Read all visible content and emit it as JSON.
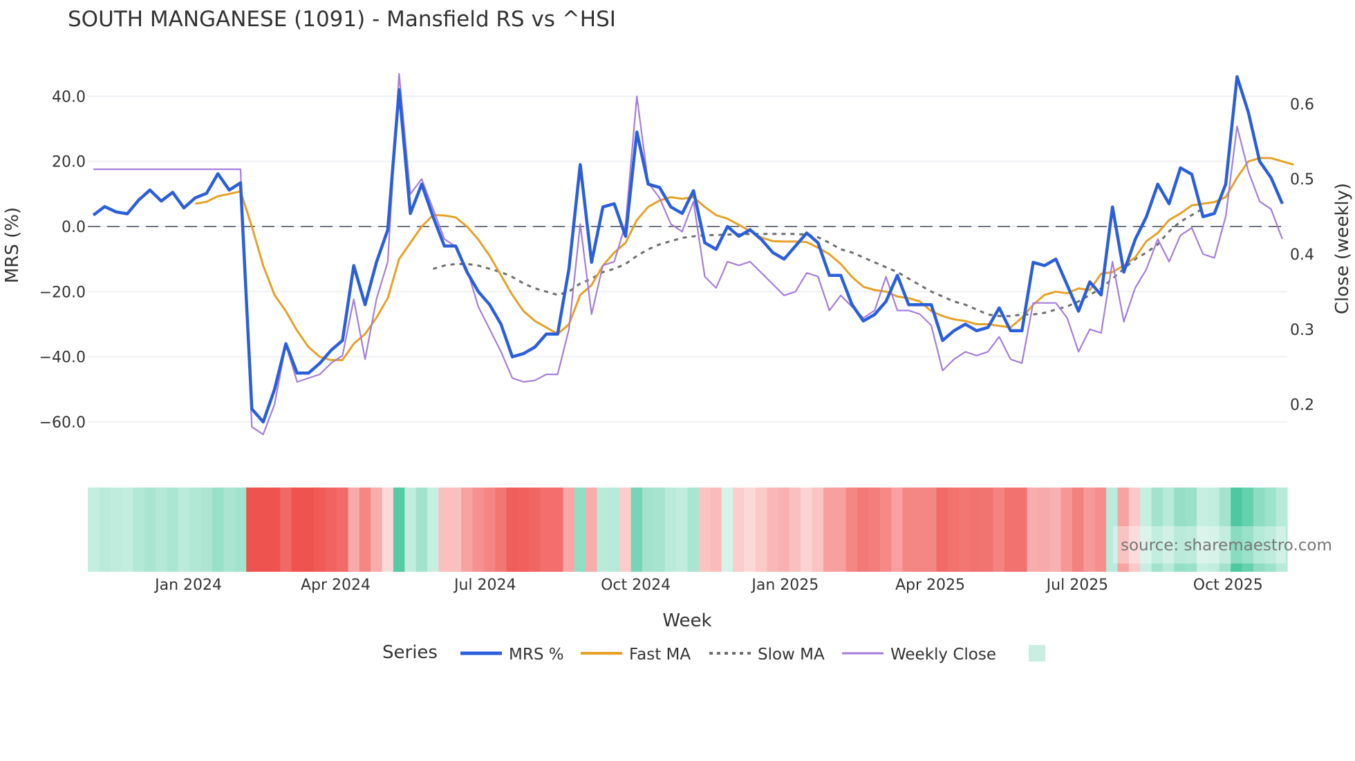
{
  "title": "SOUTH MANGANESE (1091) - Mansfield RS vs ^HSI",
  "source": "source: sharemaestro.com",
  "colors": {
    "mrs": "#2b5fd9",
    "fast_ma": "#e6a126",
    "slow_ma": "#6e6e6e",
    "weekly_close": "#a57ddb",
    "zero_line": "#6e7580",
    "grid": "#eef0f4",
    "heat_pos": "#4cc9a0",
    "heat_neg": "#ef5350"
  },
  "legend": {
    "title": "Series",
    "items": [
      {
        "label": "MRS %",
        "style": "solid-thick",
        "color": "#2b5fd9"
      },
      {
        "label": "Fast MA",
        "style": "solid",
        "color": "#e6a126"
      },
      {
        "label": "Slow MA",
        "style": "dotted",
        "color": "#6e6e6e"
      },
      {
        "label": "Weekly Close",
        "style": "solid-thin",
        "color": "#a57ddb"
      },
      {
        "label": "",
        "style": "swatch",
        "color": "#c9efe2"
      }
    ]
  },
  "chart_data": {
    "type": "line",
    "title": "SOUTH MANGANESE (1091) - Mansfield RS vs ^HSI",
    "xlabel": "Week",
    "ylabel": "MRS (%)",
    "y2label": "Close (weekly)",
    "ylim": [
      -67,
      53
    ],
    "y2lim": [
      0.15,
      0.68
    ],
    "yticks": [
      "40.0",
      "20.0",
      "0.0",
      "−20.0",
      "−40.0",
      "−60.0"
    ],
    "ytick_values": [
      40,
      20,
      0,
      -20,
      -40,
      -60
    ],
    "y2ticks": [
      "0.6",
      "0.5",
      "0.4",
      "0.3",
      "0.2"
    ],
    "y2tick_values": [
      0.6,
      0.5,
      0.4,
      0.3,
      0.2
    ],
    "xticks": [
      "Jan 2024",
      "Apr 2024",
      "Jul 2024",
      "Oct 2024",
      "Jan 2025",
      "Apr 2025",
      "Jul 2025",
      "Oct 2025"
    ],
    "xtick_week_index": [
      8.4,
      21.4,
      34.6,
      47.9,
      61.1,
      73.9,
      86.9,
      100.2
    ],
    "x_start": "2023-11-06",
    "x_step": "1 week",
    "n_points": 106,
    "grid": true,
    "zero_line": "dashed",
    "legend_position": "bottom",
    "series": [
      {
        "name": "MRS %",
        "axis": "left",
        "values": [
          3.5,
          6.1,
          4.5,
          3.9,
          8.1,
          11.2,
          7.8,
          10.5,
          5.7,
          8.8,
          10.2,
          16.2,
          11.2,
          13.4,
          -56,
          -60,
          -50,
          -36,
          -45,
          -45,
          -42,
          -38,
          -35,
          -12,
          -24,
          -11,
          -1,
          42,
          4,
          13,
          3,
          -6,
          -6,
          -14,
          -20,
          -24,
          -30,
          -40,
          -39,
          -37,
          -33,
          -33,
          -13,
          19,
          -11,
          6,
          7,
          -3,
          29,
          13,
          12,
          6,
          4,
          11,
          -5,
          -7,
          0,
          -3,
          -1,
          -4,
          -8,
          -10,
          -6,
          -2,
          -5,
          -15,
          -15,
          -24,
          -29,
          -27,
          -23,
          -15,
          -24,
          -24,
          -24,
          -35,
          -32,
          -30,
          -32,
          -31,
          -25,
          -32,
          -32,
          -11,
          -12,
          -10,
          -18,
          -26,
          -17,
          -21,
          6,
          -14,
          -4,
          3,
          13,
          7,
          18,
          16,
          3,
          4,
          13,
          46,
          35,
          20,
          15,
          7
        ]
      },
      {
        "name": "Fast MA",
        "axis": "left",
        "start_index": 9,
        "values": [
          7.0,
          7.6,
          9.3,
          10.0,
          10.8,
          0,
          -12,
          -21,
          -26,
          -32,
          -37,
          -40,
          -41,
          -41,
          -36,
          -33,
          -28,
          -22,
          -10,
          -5,
          0,
          3.5,
          3.4,
          2.8,
          0,
          -4,
          -9,
          -15,
          -21,
          -26,
          -29,
          -31,
          -33,
          -30,
          -21,
          -18,
          -12,
          -8,
          -5,
          2,
          6,
          8,
          9,
          8.5,
          9,
          6,
          3.5,
          2.4,
          0.5,
          -1.4,
          -3.4,
          -4.5,
          -4.6,
          -4.6,
          -4.8,
          -6.5,
          -8.5,
          -11.5,
          -15.5,
          -18.5,
          -19.5,
          -20,
          -21.5,
          -22,
          -23,
          -26,
          -27.5,
          -28.5,
          -29,
          -30,
          -30,
          -30.5,
          -31,
          -28,
          -24,
          -21,
          -20,
          -20.5,
          -19,
          -19.5,
          -14.5,
          -14,
          -12,
          -9.5,
          -4.5,
          -2,
          2,
          4,
          6.5,
          7,
          7.5,
          9,
          15,
          20,
          21,
          21,
          20,
          19
        ]
      },
      {
        "name": "Slow MA",
        "axis": "left",
        "start_index": 30,
        "values": [
          -13,
          -12,
          -11.5,
          -11.5,
          -12,
          -13,
          -14,
          -15.5,
          -17.5,
          -19,
          -20,
          -21,
          -20,
          -17.5,
          -16,
          -14,
          -13,
          -11.5,
          -9,
          -7,
          -5.5,
          -4.5,
          -3.5,
          -3,
          -2.7,
          -2.6,
          -2.5,
          -2.4,
          -2.3,
          -2.3,
          -2.3,
          -2.3,
          -2.3,
          -2.5,
          -3.3,
          -5,
          -7,
          -8,
          -9.5,
          -11,
          -12.5,
          -14,
          -16,
          -18,
          -20,
          -21.5,
          -23,
          -24,
          -25.5,
          -27,
          -27.5,
          -27.5,
          -27,
          -27,
          -26.5,
          -25.5,
          -24.5,
          -23,
          -21,
          -19,
          -16,
          -13,
          -10,
          -8,
          -5.5,
          -1.5,
          1.5,
          3.5,
          5.5
        ]
      },
      {
        "name": "Weekly Close",
        "axis": "right",
        "values": [
          0.513,
          0.513,
          0.513,
          0.513,
          0.513,
          0.513,
          0.513,
          0.513,
          0.513,
          0.513,
          0.513,
          0.513,
          0.513,
          0.513,
          0.17,
          0.16,
          0.2,
          0.28,
          0.23,
          0.235,
          0.24,
          0.255,
          0.265,
          0.34,
          0.26,
          0.34,
          0.39,
          0.64,
          0.48,
          0.5,
          0.46,
          0.42,
          0.41,
          0.38,
          0.33,
          0.3,
          0.27,
          0.235,
          0.23,
          0.232,
          0.24,
          0.24,
          0.3,
          0.44,
          0.32,
          0.385,
          0.39,
          0.44,
          0.61,
          0.495,
          0.475,
          0.44,
          0.43,
          0.47,
          0.37,
          0.355,
          0.39,
          0.385,
          0.39,
          0.375,
          0.36,
          0.345,
          0.35,
          0.375,
          0.37,
          0.325,
          0.345,
          0.33,
          0.315,
          0.325,
          0.37,
          0.325,
          0.325,
          0.32,
          0.305,
          0.245,
          0.26,
          0.27,
          0.265,
          0.27,
          0.29,
          0.26,
          0.255,
          0.335,
          0.335,
          0.335,
          0.315,
          0.27,
          0.3,
          0.295,
          0.39,
          0.31,
          0.355,
          0.38,
          0.42,
          0.39,
          0.425,
          0.435,
          0.4,
          0.395,
          0.45,
          0.57,
          0.51,
          0.47,
          0.46,
          0.42
        ]
      }
    ],
    "heatmap": {
      "description": "MRS sign/intensity strip per week (green=positive, red=negative)",
      "values_from": "MRS %"
    }
  }
}
